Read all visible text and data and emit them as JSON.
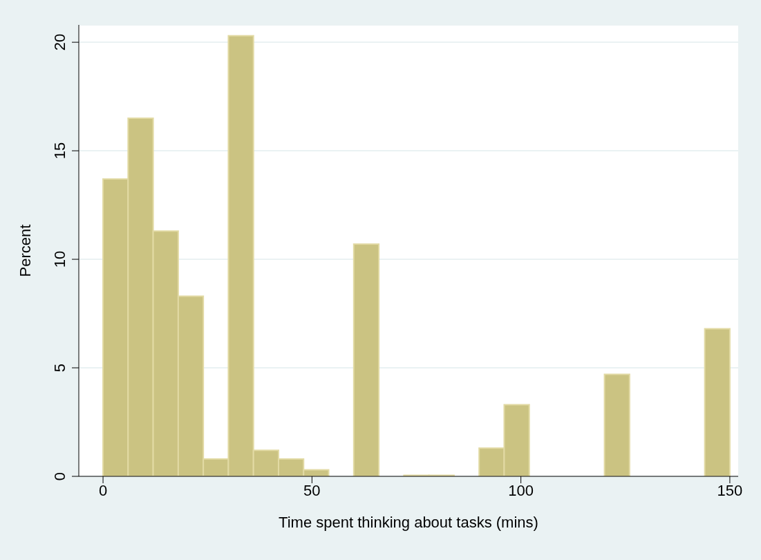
{
  "chart_data": {
    "type": "histogram",
    "xlabel": "Time spent thinking about tasks (mins)",
    "ylabel": "Percent",
    "bins": [
      0,
      6,
      12,
      18,
      24,
      30,
      36,
      42,
      48,
      54,
      60,
      66,
      72,
      78,
      84,
      90,
      96,
      102,
      108,
      114,
      120,
      126,
      132,
      138,
      144,
      150
    ],
    "values": [
      13.7,
      16.5,
      11.3,
      8.3,
      0.8,
      20.3,
      1.2,
      0.8,
      0.3,
      0,
      10.7,
      0,
      0.05,
      0.05,
      0,
      1.3,
      3.3,
      0,
      0,
      0,
      4.7,
      0,
      0,
      0,
      6.8
    ],
    "color": "#cbc382",
    "xlim": [
      -5.8,
      152
    ],
    "xticks": [
      0,
      50,
      100,
      150
    ],
    "ylim": [
      0,
      20.8
    ],
    "yticks": [
      0,
      5,
      10,
      15,
      20
    ],
    "grid": "y",
    "legend": false
  }
}
